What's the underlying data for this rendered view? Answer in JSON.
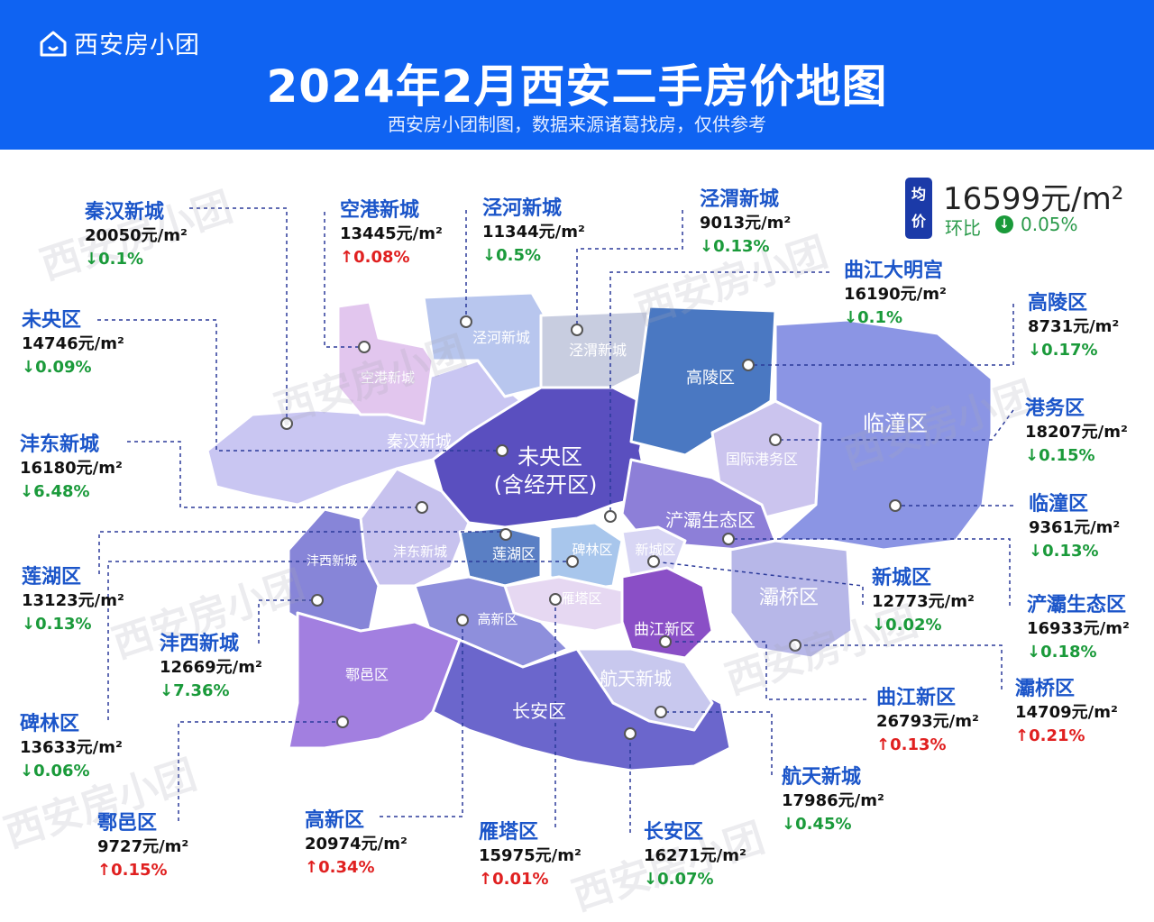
{
  "header": {
    "brand": "西安房小团",
    "title": "2024年2月西安二手房价地图",
    "subtitle": "西安房小团制图，数据来源诸葛找房，仅供参考"
  },
  "average": {
    "tag": "均价",
    "price": "16599元/m²",
    "change_label": "环比",
    "change_icon": "down-arrow-icon",
    "change_value": "0.05%"
  },
  "map_labels": {
    "weiyang": "未央区",
    "weiyang_sub": "(含经开区)",
    "konggang": "空港新城",
    "jinghe": "泾河新城",
    "jingwei": "泾渭新城",
    "gaoling": "高陵区",
    "lintong": "临潼区",
    "guoji_gangwu": "国际港务区",
    "qinhan": "秦汉新城",
    "chanba": "浐灞生态区",
    "fengdong": "沣东新城",
    "fengxi": "沣西新城",
    "lianhu": "莲湖区",
    "beilin": "碑林区",
    "xincheng": "新城区",
    "baqiao": "灞桥区",
    "yanta": "雁塔区",
    "gaoxin": "高新区",
    "qujiang": "曲江新区",
    "huyi": "鄠邑区",
    "changan": "长安区",
    "hangtian": "航天新城"
  },
  "callouts": [
    {
      "name": "秦汉新城",
      "price": "20050元/m²",
      "change": "↓0.1%",
      "dir": "down"
    },
    {
      "name": "空港新城",
      "price": "13445元/m²",
      "change": "↑0.08%",
      "dir": "up"
    },
    {
      "name": "泾河新城",
      "price": "11344元/m²",
      "change": "↓0.5%",
      "dir": "down"
    },
    {
      "name": "泾渭新城",
      "price": "9013元/m²",
      "change": "↓0.13%",
      "dir": "down"
    },
    {
      "name": "曲江大明宫",
      "price": "16190元/m²",
      "change": "↓0.1%",
      "dir": "down"
    },
    {
      "name": "高陵区",
      "price": "8731元/m²",
      "change": "↓0.17%",
      "dir": "down"
    },
    {
      "name": "未央区",
      "price": "14746元/m²",
      "change": "↓0.09%",
      "dir": "down"
    },
    {
      "name": "港务区",
      "price": "18207元/m²",
      "change": "↓0.15%",
      "dir": "down"
    },
    {
      "name": "沣东新城",
      "price": "16180元/m²",
      "change": "↓6.48%",
      "dir": "down"
    },
    {
      "name": "临潼区",
      "price": "9361元/m²",
      "change": "↓0.13%",
      "dir": "down"
    },
    {
      "name": "莲湖区",
      "price": "13123元/m²",
      "change": "↓0.13%",
      "dir": "down"
    },
    {
      "name": "新城区",
      "price": "12773元/m²",
      "change": "↓0.02%",
      "dir": "down"
    },
    {
      "name": "浐灞生态区",
      "price": "16933元/m²",
      "change": "↓0.18%",
      "dir": "down"
    },
    {
      "name": "沣西新城",
      "price": "12669元/m²",
      "change": "↓7.36%",
      "dir": "down"
    },
    {
      "name": "灞桥区",
      "price": "14709元/m²",
      "change": "↑0.21%",
      "dir": "up"
    },
    {
      "name": "曲江新区",
      "price": "26793元/m²",
      "change": "↑0.13%",
      "dir": "up"
    },
    {
      "name": "碑林区",
      "price": "13633元/m²",
      "change": "↓0.06%",
      "dir": "down"
    },
    {
      "name": "航天新城",
      "price": "17986元/m²",
      "change": "↓0.45%",
      "dir": "down"
    },
    {
      "name": "鄠邑区",
      "price": "9727元/m²",
      "change": "↑0.15%",
      "dir": "up"
    },
    {
      "name": "高新区",
      "price": "20974元/m²",
      "change": "↑0.34%",
      "dir": "up"
    },
    {
      "name": "雁塔区",
      "price": "15975元/m²",
      "change": "↑0.01%",
      "dir": "up"
    },
    {
      "name": "长安区",
      "price": "16271元/m²",
      "change": "↓0.07%",
      "dir": "down"
    }
  ],
  "colors": {
    "header_bg": "#0f63f2",
    "name_blue": "#1b55c9",
    "down_green": "#1a9a3a",
    "up_red": "#e02020"
  }
}
